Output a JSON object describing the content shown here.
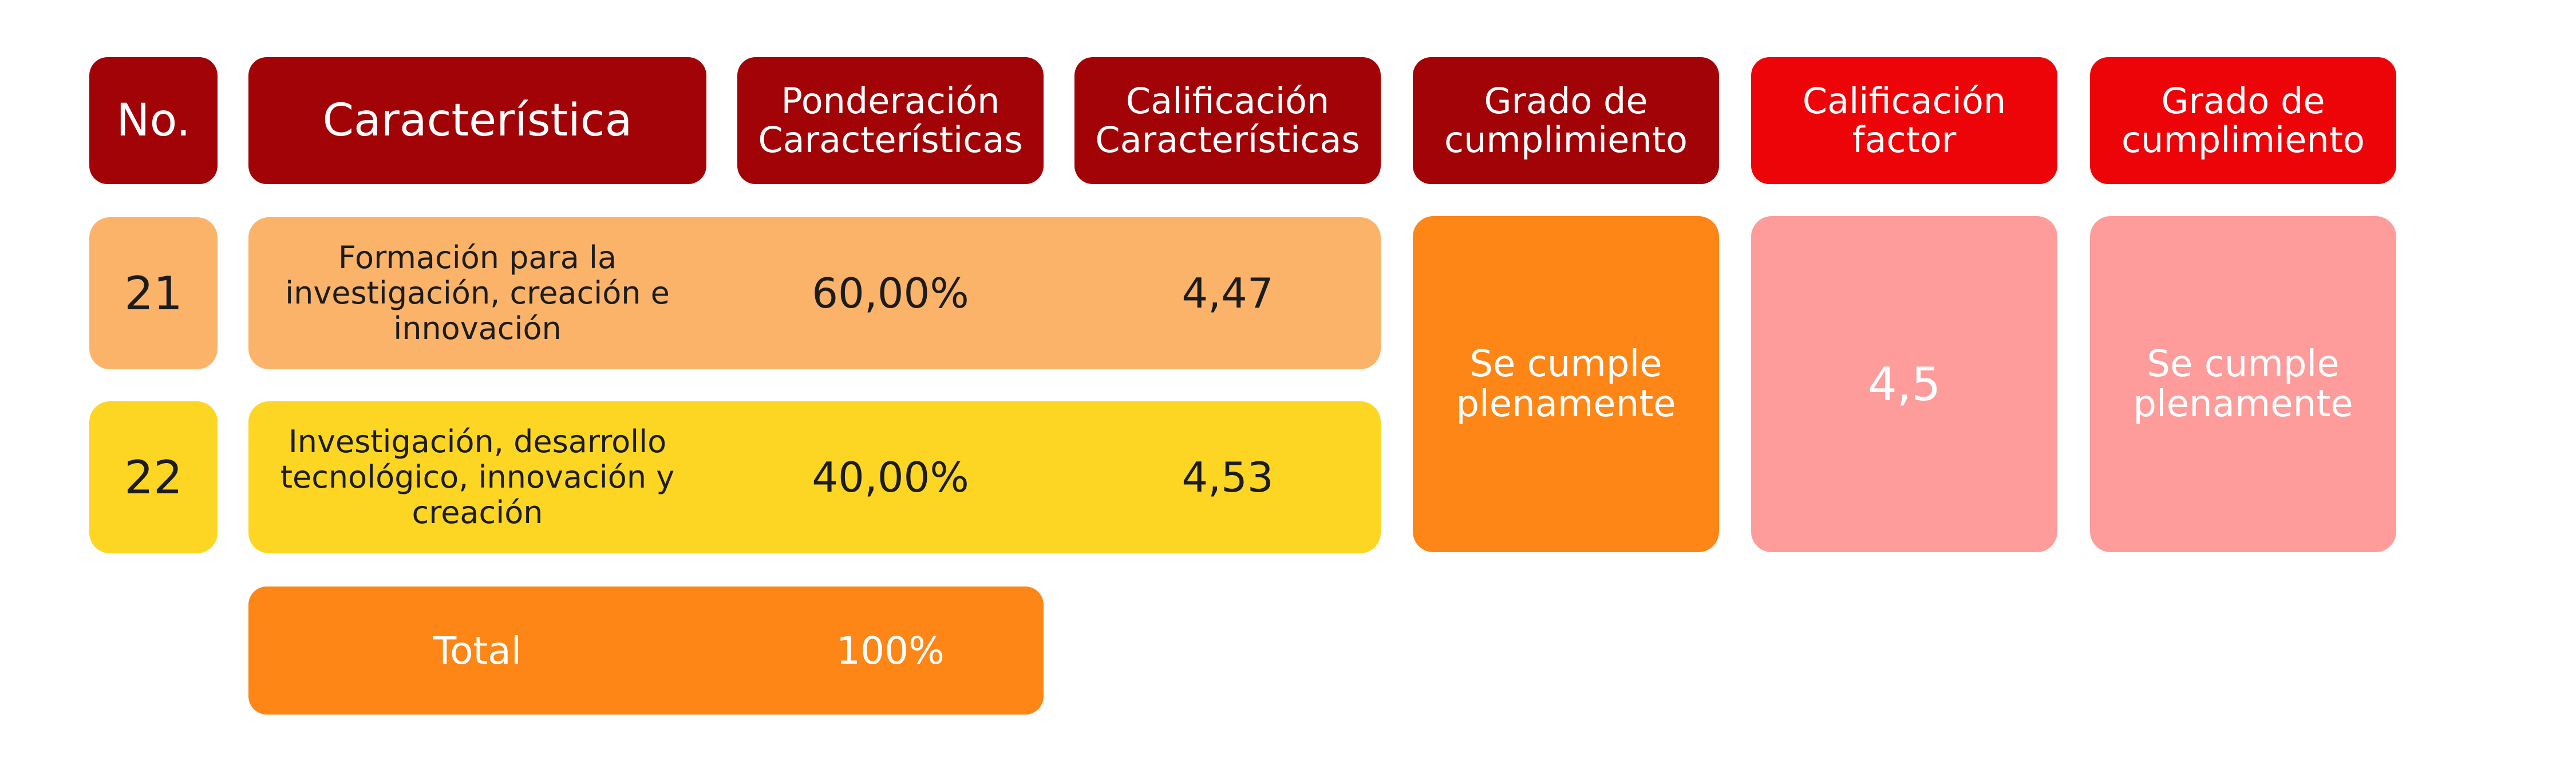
{
  "headers": {
    "no": "No.",
    "caracteristica": "Característica",
    "ponderacion": [
      "Ponderación",
      "Características"
    ],
    "calificacion": [
      "Calificación",
      "Características"
    ],
    "grado": [
      "Grado de",
      "cumplimiento"
    ],
    "calificacion_factor": [
      "Calificación",
      "factor"
    ],
    "grado_factor": [
      "Grado de",
      "cumplimiento"
    ]
  },
  "rows": [
    {
      "no": "21",
      "caracteristica": [
        "Formación para la",
        "investigación, creación e",
        "innovación"
      ],
      "ponderacion": "60,00%",
      "calificacion": "4,47"
    },
    {
      "no": "22",
      "caracteristica": [
        "Investigación, desarrollo",
        "tecnológico, innovación y",
        "creación"
      ],
      "ponderacion": "40,00%",
      "calificacion": "4,53"
    }
  ],
  "grado_cumplimiento": [
    "Se cumple",
    "plenamente"
  ],
  "calificacion_factor": "4,5",
  "grado_factor": [
    "Se cumple",
    "plenamente"
  ],
  "total": {
    "label": "Total",
    "value": "100%"
  },
  "colors": {
    "header_dark": "#a10306",
    "header_red": "#ec0409",
    "row_21": "#fbb36a",
    "row_22": "#fdd623",
    "orange": "#fd8616",
    "pink": "#fe9c9b"
  }
}
